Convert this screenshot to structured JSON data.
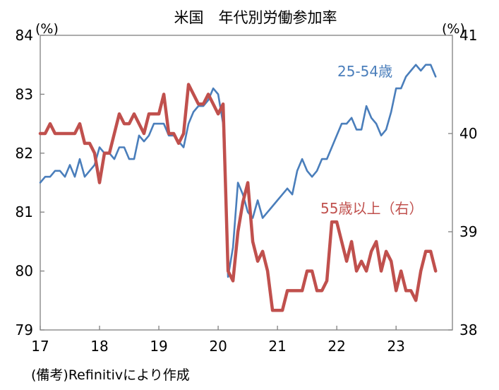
{
  "chart_data": {
    "type": "line",
    "title": "米国　年代別労働参加率",
    "left_unit": "(%)",
    "right_unit": "(%)",
    "source_note": "(備考)Refinitivにより作成",
    "x_ticks": [
      "17",
      "18",
      "19",
      "20",
      "21",
      "22",
      "23"
    ],
    "x_range": [
      2017,
      2023.95
    ],
    "y_left_ticks": [
      "84",
      "83",
      "82",
      "81",
      "80",
      "79"
    ],
    "y_left_range": [
      79,
      84
    ],
    "y_right_ticks": [
      "41",
      "40",
      "39",
      "38"
    ],
    "y_right_range": [
      38,
      41
    ],
    "grid": false,
    "series": [
      {
        "name": "25-54歳",
        "axis": "left",
        "color": "#4a7ebb",
        "x_start": 2017.0,
        "x_step": 0.08333,
        "values": [
          81.5,
          81.6,
          81.6,
          81.7,
          81.7,
          81.6,
          81.8,
          81.6,
          81.9,
          81.6,
          81.7,
          81.8,
          82.1,
          82.0,
          82.0,
          81.9,
          82.1,
          82.1,
          81.9,
          81.9,
          82.3,
          82.2,
          82.3,
          82.5,
          82.5,
          82.5,
          82.3,
          82.3,
          82.2,
          82.1,
          82.5,
          82.7,
          82.8,
          82.8,
          82.9,
          83.1,
          83.0,
          82.5,
          79.9,
          80.4,
          81.5,
          81.3,
          81.0,
          80.9,
          81.2,
          80.9,
          81.0,
          81.1,
          81.2,
          81.3,
          81.4,
          81.3,
          81.7,
          81.9,
          81.7,
          81.6,
          81.7,
          81.9,
          81.9,
          82.1,
          82.3,
          82.5,
          82.5,
          82.6,
          82.4,
          82.4,
          82.8,
          82.6,
          82.5,
          82.3,
          82.4,
          82.7,
          83.1,
          83.1,
          83.3,
          83.4,
          83.5,
          83.4,
          83.5,
          83.5,
          83.3
        ]
      },
      {
        "name": "55歳以上（右）",
        "axis": "right",
        "color": "#c0504d",
        "x_start": 2017.0,
        "x_step": 0.08333,
        "values": [
          40.0,
          40.0,
          40.1,
          40.0,
          40.0,
          40.0,
          40.0,
          40.0,
          40.1,
          39.9,
          39.9,
          39.8,
          39.5,
          39.8,
          39.8,
          40.0,
          40.2,
          40.1,
          40.1,
          40.2,
          40.1,
          40.0,
          40.2,
          40.2,
          40.2,
          40.4,
          40.0,
          40.0,
          39.9,
          40.0,
          40.5,
          40.4,
          40.3,
          40.3,
          40.4,
          40.3,
          40.2,
          40.3,
          38.6,
          38.5,
          39.0,
          39.3,
          39.5,
          38.9,
          38.7,
          38.8,
          38.6,
          38.2,
          38.2,
          38.2,
          38.4,
          38.4,
          38.4,
          38.4,
          38.6,
          38.6,
          38.4,
          38.4,
          38.5,
          39.1,
          39.1,
          38.9,
          38.7,
          38.9,
          38.6,
          38.7,
          38.6,
          38.8,
          38.9,
          38.6,
          38.8,
          38.7,
          38.4,
          38.6,
          38.4,
          38.4,
          38.3,
          38.6,
          38.8,
          38.8,
          38.6
        ]
      }
    ],
    "labels": {
      "series1": "25-54歳",
      "series2": "55歳以上（右）"
    }
  }
}
